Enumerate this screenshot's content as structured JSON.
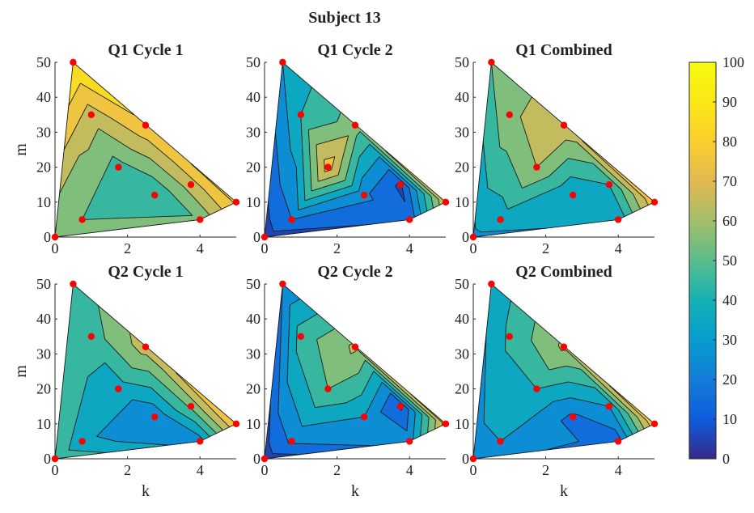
{
  "figure": {
    "suptitle": "Subject 13",
    "colormap": "parula",
    "colorbar": {
      "min": 0,
      "max": 100,
      "ticks": [
        0,
        10,
        20,
        30,
        40,
        50,
        60,
        70,
        80,
        90,
        100
      ]
    }
  },
  "chart_data": [
    {
      "type": "heatmap",
      "title": "Q1 Cycle 1",
      "xlabel": "",
      "ylabel": "m",
      "xlim": [
        0,
        5
      ],
      "ylim": [
        0,
        50
      ],
      "xticks": [
        0,
        2,
        4
      ],
      "yticks": [
        0,
        10,
        20,
        30,
        40,
        50
      ],
      "points": [
        {
          "k": 0,
          "m": 0,
          "v": 50
        },
        {
          "k": 0.5,
          "m": 50,
          "v": 90
        },
        {
          "k": 1,
          "m": 35,
          "v": 65
        },
        {
          "k": 2.5,
          "m": 32,
          "v": 78
        },
        {
          "k": 1.75,
          "m": 20,
          "v": 46
        },
        {
          "k": 2.75,
          "m": 12,
          "v": 40
        },
        {
          "k": 3.75,
          "m": 15,
          "v": 65
        },
        {
          "k": 5,
          "m": 10,
          "v": 82
        },
        {
          "k": 0.75,
          "m": 5,
          "v": 50
        },
        {
          "k": 4,
          "m": 5,
          "v": 52
        }
      ]
    },
    {
      "type": "heatmap",
      "title": "Q1 Cycle 2",
      "xlabel": "",
      "ylabel": "",
      "xlim": [
        0,
        5
      ],
      "ylim": [
        0,
        50
      ],
      "xticks": [
        0,
        2,
        4
      ],
      "yticks": [
        0,
        10,
        20,
        30,
        40,
        50
      ],
      "points": [
        {
          "k": 0,
          "m": 0,
          "v": 5
        },
        {
          "k": 0.5,
          "m": 50,
          "v": 30
        },
        {
          "k": 1,
          "m": 35,
          "v": 40
        },
        {
          "k": 2.5,
          "m": 32,
          "v": 55
        },
        {
          "k": 1.75,
          "m": 20,
          "v": 75
        },
        {
          "k": 2.75,
          "m": 12,
          "v": 22
        },
        {
          "k": 3.75,
          "m": 15,
          "v": 8
        },
        {
          "k": 5,
          "m": 10,
          "v": 70
        },
        {
          "k": 0.75,
          "m": 5,
          "v": 20
        },
        {
          "k": 4,
          "m": 5,
          "v": 12
        }
      ]
    },
    {
      "type": "heatmap",
      "title": "Q1 Combined",
      "xlabel": "",
      "ylabel": "",
      "xlim": [
        0,
        5
      ],
      "ylim": [
        0,
        50
      ],
      "xticks": [
        0,
        2,
        4
      ],
      "yticks": [
        0,
        10,
        20,
        30,
        40,
        50
      ],
      "points": [
        {
          "k": 0,
          "m": 0,
          "v": 28
        },
        {
          "k": 0.5,
          "m": 50,
          "v": 50
        },
        {
          "k": 1,
          "m": 35,
          "v": 58
        },
        {
          "k": 2.5,
          "m": 32,
          "v": 68
        },
        {
          "k": 1.75,
          "m": 20,
          "v": 60
        },
        {
          "k": 2.75,
          "m": 12,
          "v": 30
        },
        {
          "k": 3.75,
          "m": 15,
          "v": 40
        },
        {
          "k": 5,
          "m": 10,
          "v": 78
        },
        {
          "k": 0.75,
          "m": 5,
          "v": 35
        },
        {
          "k": 4,
          "m": 5,
          "v": 32
        }
      ]
    },
    {
      "type": "heatmap",
      "title": "Q2 Cycle 1",
      "xlabel": "k",
      "ylabel": "m",
      "xlim": [
        0,
        5
      ],
      "ylim": [
        0,
        50
      ],
      "xticks": [
        0,
        2,
        4
      ],
      "yticks": [
        0,
        10,
        20,
        30,
        40,
        50
      ],
      "points": [
        {
          "k": 0,
          "m": 0,
          "v": 48
        },
        {
          "k": 0.5,
          "m": 50,
          "v": 42
        },
        {
          "k": 1,
          "m": 35,
          "v": 45
        },
        {
          "k": 2.5,
          "m": 32,
          "v": 65
        },
        {
          "k": 1.75,
          "m": 20,
          "v": 35
        },
        {
          "k": 2.75,
          "m": 12,
          "v": 22
        },
        {
          "k": 3.75,
          "m": 15,
          "v": 52
        },
        {
          "k": 5,
          "m": 10,
          "v": 80
        },
        {
          "k": 0.75,
          "m": 5,
          "v": 32
        },
        {
          "k": 4,
          "m": 5,
          "v": 25
        }
      ]
    },
    {
      "type": "heatmap",
      "title": "Q2 Cycle 2",
      "xlabel": "k",
      "ylabel": "",
      "xlim": [
        0,
        5
      ],
      "ylim": [
        0,
        50
      ],
      "xticks": [
        0,
        2,
        4
      ],
      "yticks": [
        0,
        10,
        20,
        30,
        40,
        50
      ],
      "points": [
        {
          "k": 0,
          "m": 0,
          "v": 5
        },
        {
          "k": 0.5,
          "m": 50,
          "v": 20
        },
        {
          "k": 1,
          "m": 35,
          "v": 45
        },
        {
          "k": 2.5,
          "m": 32,
          "v": 62
        },
        {
          "k": 1.75,
          "m": 20,
          "v": 50
        },
        {
          "k": 2.75,
          "m": 12,
          "v": 30
        },
        {
          "k": 3.75,
          "m": 15,
          "v": 8
        },
        {
          "k": 5,
          "m": 10,
          "v": 75
        },
        {
          "k": 0.75,
          "m": 5,
          "v": 22
        },
        {
          "k": 4,
          "m": 5,
          "v": 25
        }
      ]
    },
    {
      "type": "heatmap",
      "title": "Q2 Combined",
      "xlabel": "k",
      "ylabel": "",
      "xlim": [
        0,
        5
      ],
      "ylim": [
        0,
        50
      ],
      "xticks": [
        0,
        2,
        4
      ],
      "yticks": [
        0,
        10,
        20,
        30,
        40,
        50
      ],
      "points": [
        {
          "k": 0,
          "m": 0,
          "v": 25
        },
        {
          "k": 0.5,
          "m": 50,
          "v": 32
        },
        {
          "k": 1,
          "m": 35,
          "v": 42
        },
        {
          "k": 2.5,
          "m": 32,
          "v": 62
        },
        {
          "k": 1.75,
          "m": 20,
          "v": 40
        },
        {
          "k": 2.75,
          "m": 12,
          "v": 18
        },
        {
          "k": 3.75,
          "m": 15,
          "v": 30
        },
        {
          "k": 5,
          "m": 10,
          "v": 78
        },
        {
          "k": 0.75,
          "m": 5,
          "v": 30
        },
        {
          "k": 4,
          "m": 5,
          "v": 15
        }
      ]
    }
  ]
}
